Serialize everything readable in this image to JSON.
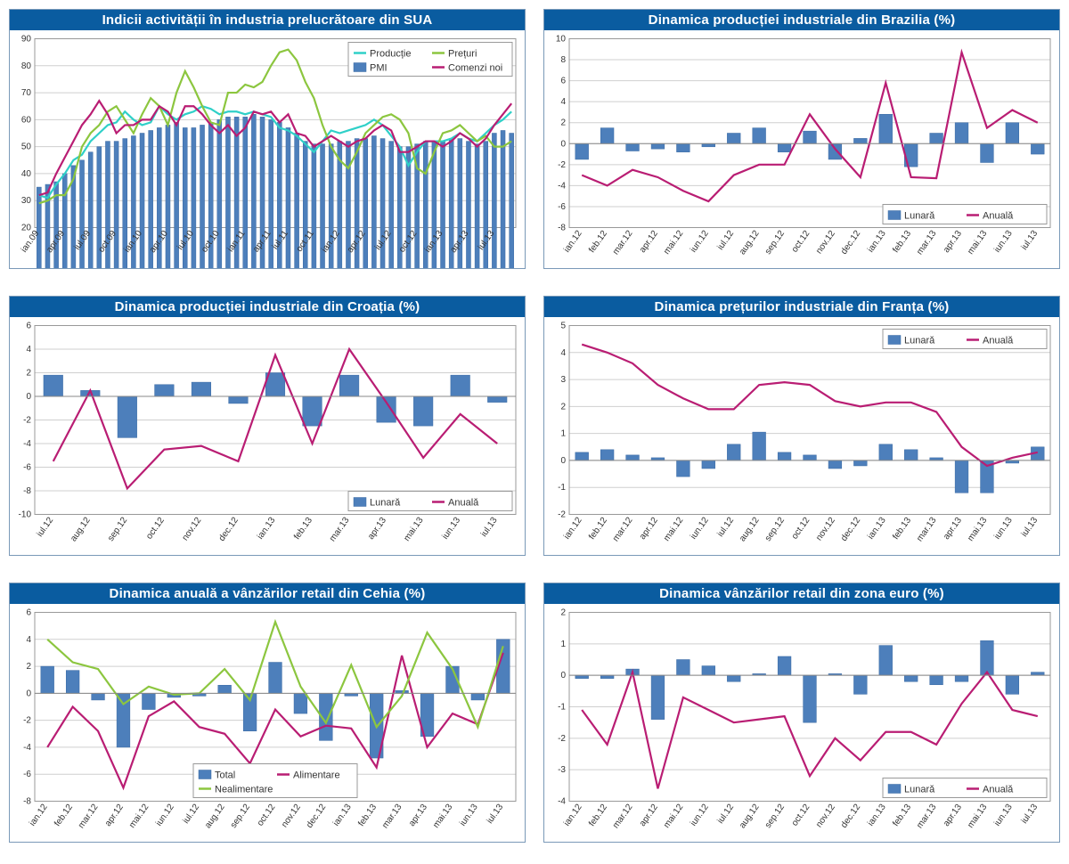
{
  "layout": {
    "cols": 2,
    "rows": 3,
    "chart_border_color": "#7a99b8",
    "title_bg": "#0a5ca0",
    "title_fg": "#ffffff",
    "grid_color": "#cfcfcf",
    "background": "#ffffff"
  },
  "colors": {
    "bar_blue": "#4d7fbb",
    "bar_blue_border": "#3a6aa3",
    "line_magenta": "#b91d73",
    "line_cyan": "#2fd0c8",
    "line_green": "#8cc63f"
  },
  "charts": [
    {
      "id": "usa-pmi",
      "title": "Indicii activității în industria prelucrătoare din SUA",
      "type": "bar+lines",
      "legend": {
        "position": "top-right",
        "items": [
          {
            "label": "Producție",
            "type": "line",
            "color": "#2fd0c8"
          },
          {
            "label": "Prețuri",
            "type": "line",
            "color": "#8cc63f"
          },
          {
            "label": "PMI",
            "type": "bar",
            "color": "#4d7fbb"
          },
          {
            "label": "Comenzi noi",
            "type": "line",
            "color": "#b91d73"
          }
        ]
      },
      "x_labels": [
        "ian.09",
        "apr.09",
        "iul.09",
        "oct.09",
        "ian.10",
        "apr.10",
        "iul.10",
        "oct.10",
        "ian.11",
        "apr.11",
        "iul.11",
        "oct.11",
        "ian.12",
        "apr.12",
        "iul.12",
        "oct.12",
        "ian.13",
        "apr.13",
        "iul.13"
      ],
      "x_label_every": 3,
      "ylim": [
        20,
        90
      ],
      "ytick_step": 10,
      "bars": [
        35,
        36,
        37,
        40,
        43,
        45,
        48,
        50,
        52,
        52,
        53,
        54,
        55,
        56,
        57,
        58,
        59,
        57,
        57,
        58,
        59,
        60,
        61,
        61,
        61,
        62,
        61,
        60,
        59,
        57,
        55,
        52,
        51,
        51,
        51,
        52,
        52,
        53,
        53,
        54,
        53,
        52,
        50,
        50,
        51,
        52,
        52,
        52,
        53,
        53,
        52,
        51,
        52,
        55,
        56,
        55
      ],
      "lines": {
        "productie": [
          32,
          31,
          36,
          40,
          45,
          47,
          52,
          55,
          58,
          59,
          63,
          60,
          58,
          59,
          65,
          62,
          60,
          62,
          63,
          65,
          64,
          62,
          63,
          63,
          62,
          63,
          62,
          61,
          57,
          56,
          54,
          51,
          48,
          52,
          56,
          55,
          56,
          57,
          58,
          60,
          58,
          54,
          50,
          43,
          48,
          52,
          52,
          52,
          53,
          55,
          53,
          52,
          55,
          58,
          60,
          63
        ],
        "preturi": [
          29,
          30,
          32,
          32,
          38,
          50,
          55,
          58,
          63,
          65,
          60,
          55,
          62,
          68,
          65,
          58,
          70,
          78,
          72,
          65,
          59,
          58,
          70,
          70,
          73,
          72,
          74,
          80,
          85,
          86,
          82,
          74,
          68,
          58,
          50,
          45,
          42,
          48,
          55,
          58,
          61,
          62,
          60,
          55,
          42,
          40,
          48,
          55,
          56,
          58,
          55,
          52,
          54,
          50,
          50,
          52
        ],
        "comenzi": [
          32,
          33,
          40,
          46,
          52,
          58,
          62,
          67,
          62,
          55,
          58,
          58,
          60,
          60,
          65,
          63,
          58,
          65,
          65,
          62,
          58,
          55,
          58,
          54,
          57,
          63,
          62,
          63,
          59,
          62,
          55,
          54,
          50,
          52,
          54,
          52,
          50,
          52,
          53,
          56,
          58,
          56,
          48,
          48,
          50,
          52,
          52,
          50,
          52,
          55,
          53,
          50,
          53,
          58,
          62,
          66
        ]
      }
    },
    {
      "id": "brazil",
      "title": "Dinamica producției industriale din Brazilia (%)",
      "type": "bar+lines",
      "legend": {
        "position": "bottom-right",
        "items": [
          {
            "label": "Lunară",
            "type": "bar",
            "color": "#4d7fbb"
          },
          {
            "label": "Anuală",
            "type": "line",
            "color": "#b91d73"
          }
        ]
      },
      "x_labels": [
        "ian.12",
        "feb.12",
        "mar.12",
        "apr.12",
        "mai.12",
        "iun.12",
        "iul.12",
        "aug.12",
        "sep.12",
        "oct.12",
        "nov.12",
        "dec.12",
        "ian.13",
        "feb.13",
        "mar.13",
        "apr.13",
        "mai.13",
        "iun.13",
        "iul.13"
      ],
      "x_label_every": 1,
      "ylim": [
        -8,
        10
      ],
      "ytick_step": 2,
      "bars": [
        -1.5,
        1.5,
        -0.7,
        -0.5,
        -0.8,
        -0.3,
        1.0,
        1.5,
        -0.8,
        1.2,
        -1.5,
        0.5,
        2.8,
        -2.2,
        1.0,
        2.0,
        -1.8,
        2.0,
        -1.0
      ],
      "lines": {
        "anuala": [
          -3.0,
          -4.0,
          -2.5,
          -3.2,
          -4.5,
          -5.5,
          -3.0,
          -2.0,
          -2.0,
          2.8,
          -0.5,
          -3.2,
          5.8,
          -3.2,
          -3.3,
          8.7,
          1.5,
          3.2,
          2.0
        ]
      }
    },
    {
      "id": "croatia",
      "title": "Dinamica producției industriale din Croația (%)",
      "type": "bar+lines",
      "legend": {
        "position": "bottom-right",
        "items": [
          {
            "label": "Lunară",
            "type": "bar",
            "color": "#4d7fbb"
          },
          {
            "label": "Anuală",
            "type": "line",
            "color": "#b91d73"
          }
        ]
      },
      "x_labels": [
        "iul.12",
        "aug.12",
        "sep.12",
        "oct.12",
        "nov.12",
        "dec.12",
        "ian.13",
        "feb.13",
        "mar.13",
        "apr.13",
        "mai.13",
        "iun.13",
        "iul.13"
      ],
      "x_label_every": 1,
      "ylim": [
        -10,
        6
      ],
      "ytick_step": 2,
      "bars": [
        1.8,
        0.5,
        -3.5,
        1.0,
        1.2,
        -0.6,
        2.0,
        -2.5,
        1.8,
        -2.2,
        -2.5,
        1.8,
        -0.5
      ],
      "lines": {
        "anuala": [
          -5.5,
          0.5,
          -7.8,
          -4.5,
          -4.2,
          -5.5,
          3.5,
          -4.0,
          4.0,
          -0.5,
          -5.2,
          -1.5,
          -4.0
        ]
      }
    },
    {
      "id": "france",
      "title": "Dinamica prețurilor industriale din Franța (%)",
      "type": "bar+lines",
      "legend": {
        "position": "top-right",
        "items": [
          {
            "label": "Lunară",
            "type": "bar",
            "color": "#4d7fbb"
          },
          {
            "label": "Anuală",
            "type": "line",
            "color": "#b91d73"
          }
        ]
      },
      "x_labels": [
        "ian.12",
        "feb.12",
        "mar.12",
        "apr.12",
        "mai.12",
        "iun.12",
        "iul.12",
        "aug.12",
        "sep.12",
        "oct.12",
        "nov.12",
        "dec.12",
        "ian.13",
        "feb.13",
        "mar.13",
        "apr.13",
        "mai.13",
        "iun.13",
        "iul.13"
      ],
      "x_label_every": 1,
      "ylim": [
        -2,
        5
      ],
      "ytick_step": 1,
      "bars": [
        0.3,
        0.4,
        0.2,
        0.1,
        -0.6,
        -0.3,
        0.6,
        1.05,
        0.3,
        0.2,
        -0.3,
        -0.2,
        0.6,
        0.4,
        0.1,
        -1.2,
        -1.2,
        -0.1,
        0.5
      ],
      "lines": {
        "anuala": [
          4.3,
          4.0,
          3.6,
          2.8,
          2.3,
          1.9,
          1.9,
          2.8,
          2.9,
          2.8,
          2.2,
          2.0,
          2.15,
          2.15,
          1.8,
          0.5,
          -0.2,
          0.1,
          0.3
        ]
      }
    },
    {
      "id": "czech",
      "title": "Dinamica anuală a vânzărilor retail din Cehia (%)",
      "type": "bar+lines",
      "legend": {
        "position": "bottom-center",
        "items": [
          {
            "label": "Total",
            "type": "bar",
            "color": "#4d7fbb"
          },
          {
            "label": "Alimentare",
            "type": "line",
            "color": "#b91d73"
          },
          {
            "label": "Nealimentare",
            "type": "line",
            "color": "#8cc63f"
          }
        ]
      },
      "x_labels": [
        "ian.12",
        "feb.12",
        "mar.12",
        "apr.12",
        "mai.12",
        "iun.12",
        "iul.12",
        "aug.12",
        "sep.12",
        "oct.12",
        "nov.12",
        "dec.12",
        "ian.13",
        "feb.13",
        "mar.13",
        "apr.13",
        "mai.13",
        "iun.13",
        "iul.13"
      ],
      "x_label_every": 1,
      "ylim": [
        -8,
        6
      ],
      "ytick_step": 2,
      "bars": [
        2.0,
        1.7,
        -0.5,
        -4.0,
        -1.2,
        -0.3,
        -0.2,
        0.6,
        -2.8,
        2.3,
        -1.5,
        -3.5,
        -0.2,
        -4.8,
        0.2,
        -3.2,
        2.0,
        -0.5,
        4.0
      ],
      "lines": {
        "alimentare": [
          -4.0,
          -1.0,
          -2.8,
          -7.0,
          -1.7,
          -0.6,
          -2.5,
          -3.0,
          -5.2,
          -1.2,
          -3.2,
          -2.4,
          -2.6,
          -5.5,
          2.8,
          -4.0,
          -1.5,
          -2.3,
          3.0
        ],
        "nealimentare": [
          4.0,
          2.3,
          1.8,
          -0.8,
          0.5,
          -0.1,
          0.0,
          1.8,
          -0.5,
          5.3,
          0.5,
          -2.2,
          2.1,
          -2.5,
          -0.2,
          4.5,
          1.8,
          -2.5,
          3.5
        ]
      }
    },
    {
      "id": "euro",
      "title": "Dinamica vânzărilor retail din zona euro (%)",
      "type": "bar+lines",
      "legend": {
        "position": "bottom-right",
        "items": [
          {
            "label": "Lunară",
            "type": "bar",
            "color": "#4d7fbb"
          },
          {
            "label": "Anuală",
            "type": "line",
            "color": "#b91d73"
          }
        ]
      },
      "x_labels": [
        "ian.12",
        "feb.12",
        "mar.12",
        "apr.12",
        "mai.12",
        "iun.12",
        "iul.12",
        "aug.12",
        "sep.12",
        "oct.12",
        "nov.12",
        "dec.12",
        "ian.13",
        "feb.13",
        "mar.13",
        "apr.13",
        "mai.13",
        "iun.13",
        "iul.13"
      ],
      "x_label_every": 1,
      "ylim": [
        -4,
        2
      ],
      "ytick_step": 1,
      "bars": [
        -0.1,
        -0.1,
        0.2,
        -1.4,
        0.5,
        0.3,
        -0.2,
        0.05,
        0.6,
        -1.5,
        0.05,
        -0.6,
        0.95,
        -0.2,
        -0.3,
        -0.2,
        1.1,
        -0.6,
        0.1
      ],
      "lines": {
        "anuala": [
          -1.1,
          -2.2,
          0.1,
          -3.6,
          -0.7,
          -1.1,
          -1.5,
          -1.4,
          -1.3,
          -3.2,
          -2.0,
          -2.7,
          -1.8,
          -1.8,
          -2.2,
          -0.9,
          0.1,
          -1.1,
          -1.3
        ]
      }
    }
  ]
}
